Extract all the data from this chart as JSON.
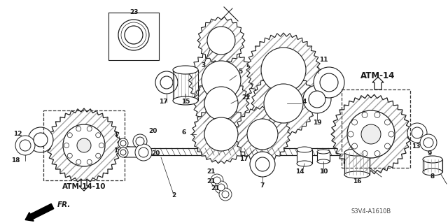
{
  "bg_color": "#ffffff",
  "fig_width": 6.4,
  "fig_height": 3.19,
  "dpi": 100,
  "watermark": "S3V4-A1610B",
  "ref_code1": "ATM-14",
  "ref_code2": "ATM-14-10",
  "lc": "#1a1a1a",
  "label_fs": 6.5,
  "atm14_fs": 8.5
}
